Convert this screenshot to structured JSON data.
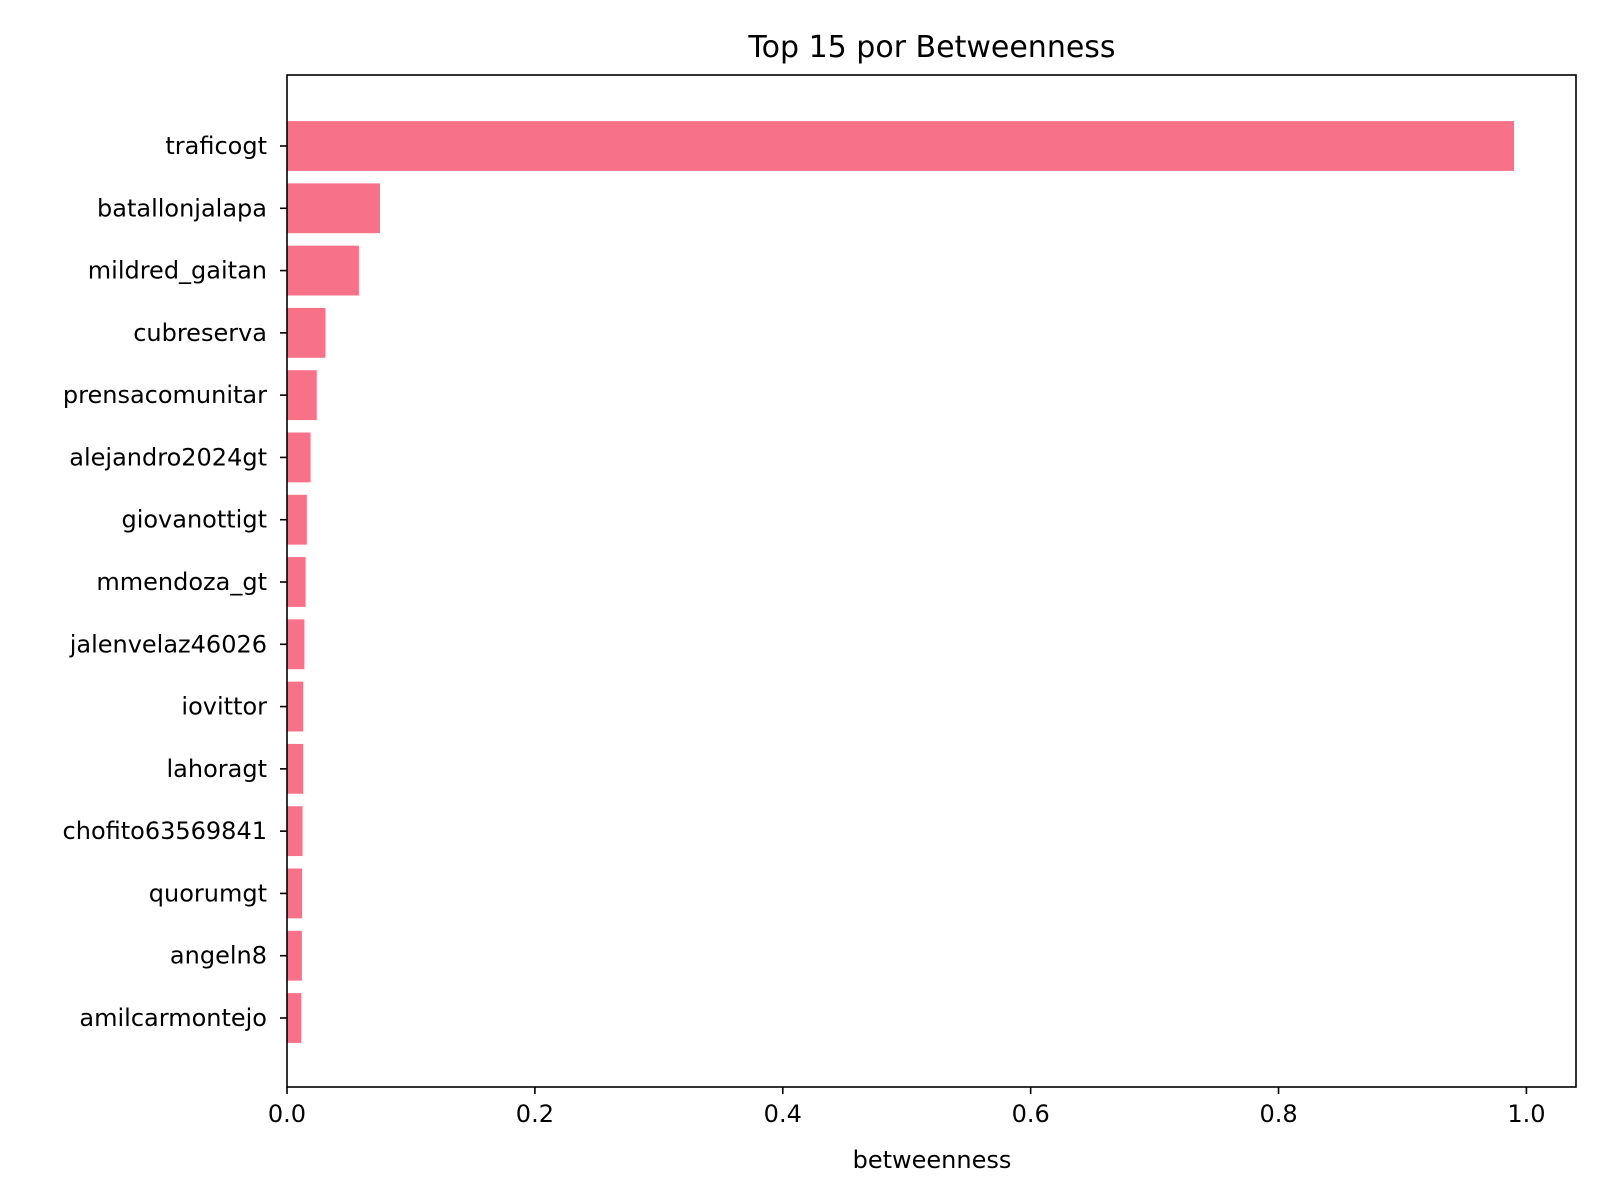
{
  "chart_data": {
    "type": "bar",
    "orientation": "horizontal",
    "title": "Top 15 por Betweenness",
    "xlabel": "betweenness",
    "ylabel": "",
    "categories": [
      "traficogt",
      "batallonjalapa",
      "mildred_gaitan",
      "cubreserva",
      "prensacomunitar",
      "alejandro2024gt",
      "giovanottigt",
      "mmendoza_gt",
      "jalenvelaz46026",
      "iovittor",
      "lahoragt",
      "chofito63569841",
      "quorumgt",
      "angeln8",
      "amilcarmontejo"
    ],
    "values": [
      0.99,
      0.075,
      0.058,
      0.031,
      0.024,
      0.019,
      0.016,
      0.015,
      0.014,
      0.013,
      0.013,
      0.0125,
      0.0122,
      0.012,
      0.0115
    ],
    "xlim": [
      0,
      1.04
    ],
    "xticks": [
      0.0,
      0.2,
      0.4,
      0.6,
      0.8,
      1.0
    ],
    "xtick_labels": [
      "0.0",
      "0.2",
      "0.4",
      "0.6",
      "0.8",
      "1.0"
    ],
    "grid": false,
    "bar_color": "#f77189"
  }
}
